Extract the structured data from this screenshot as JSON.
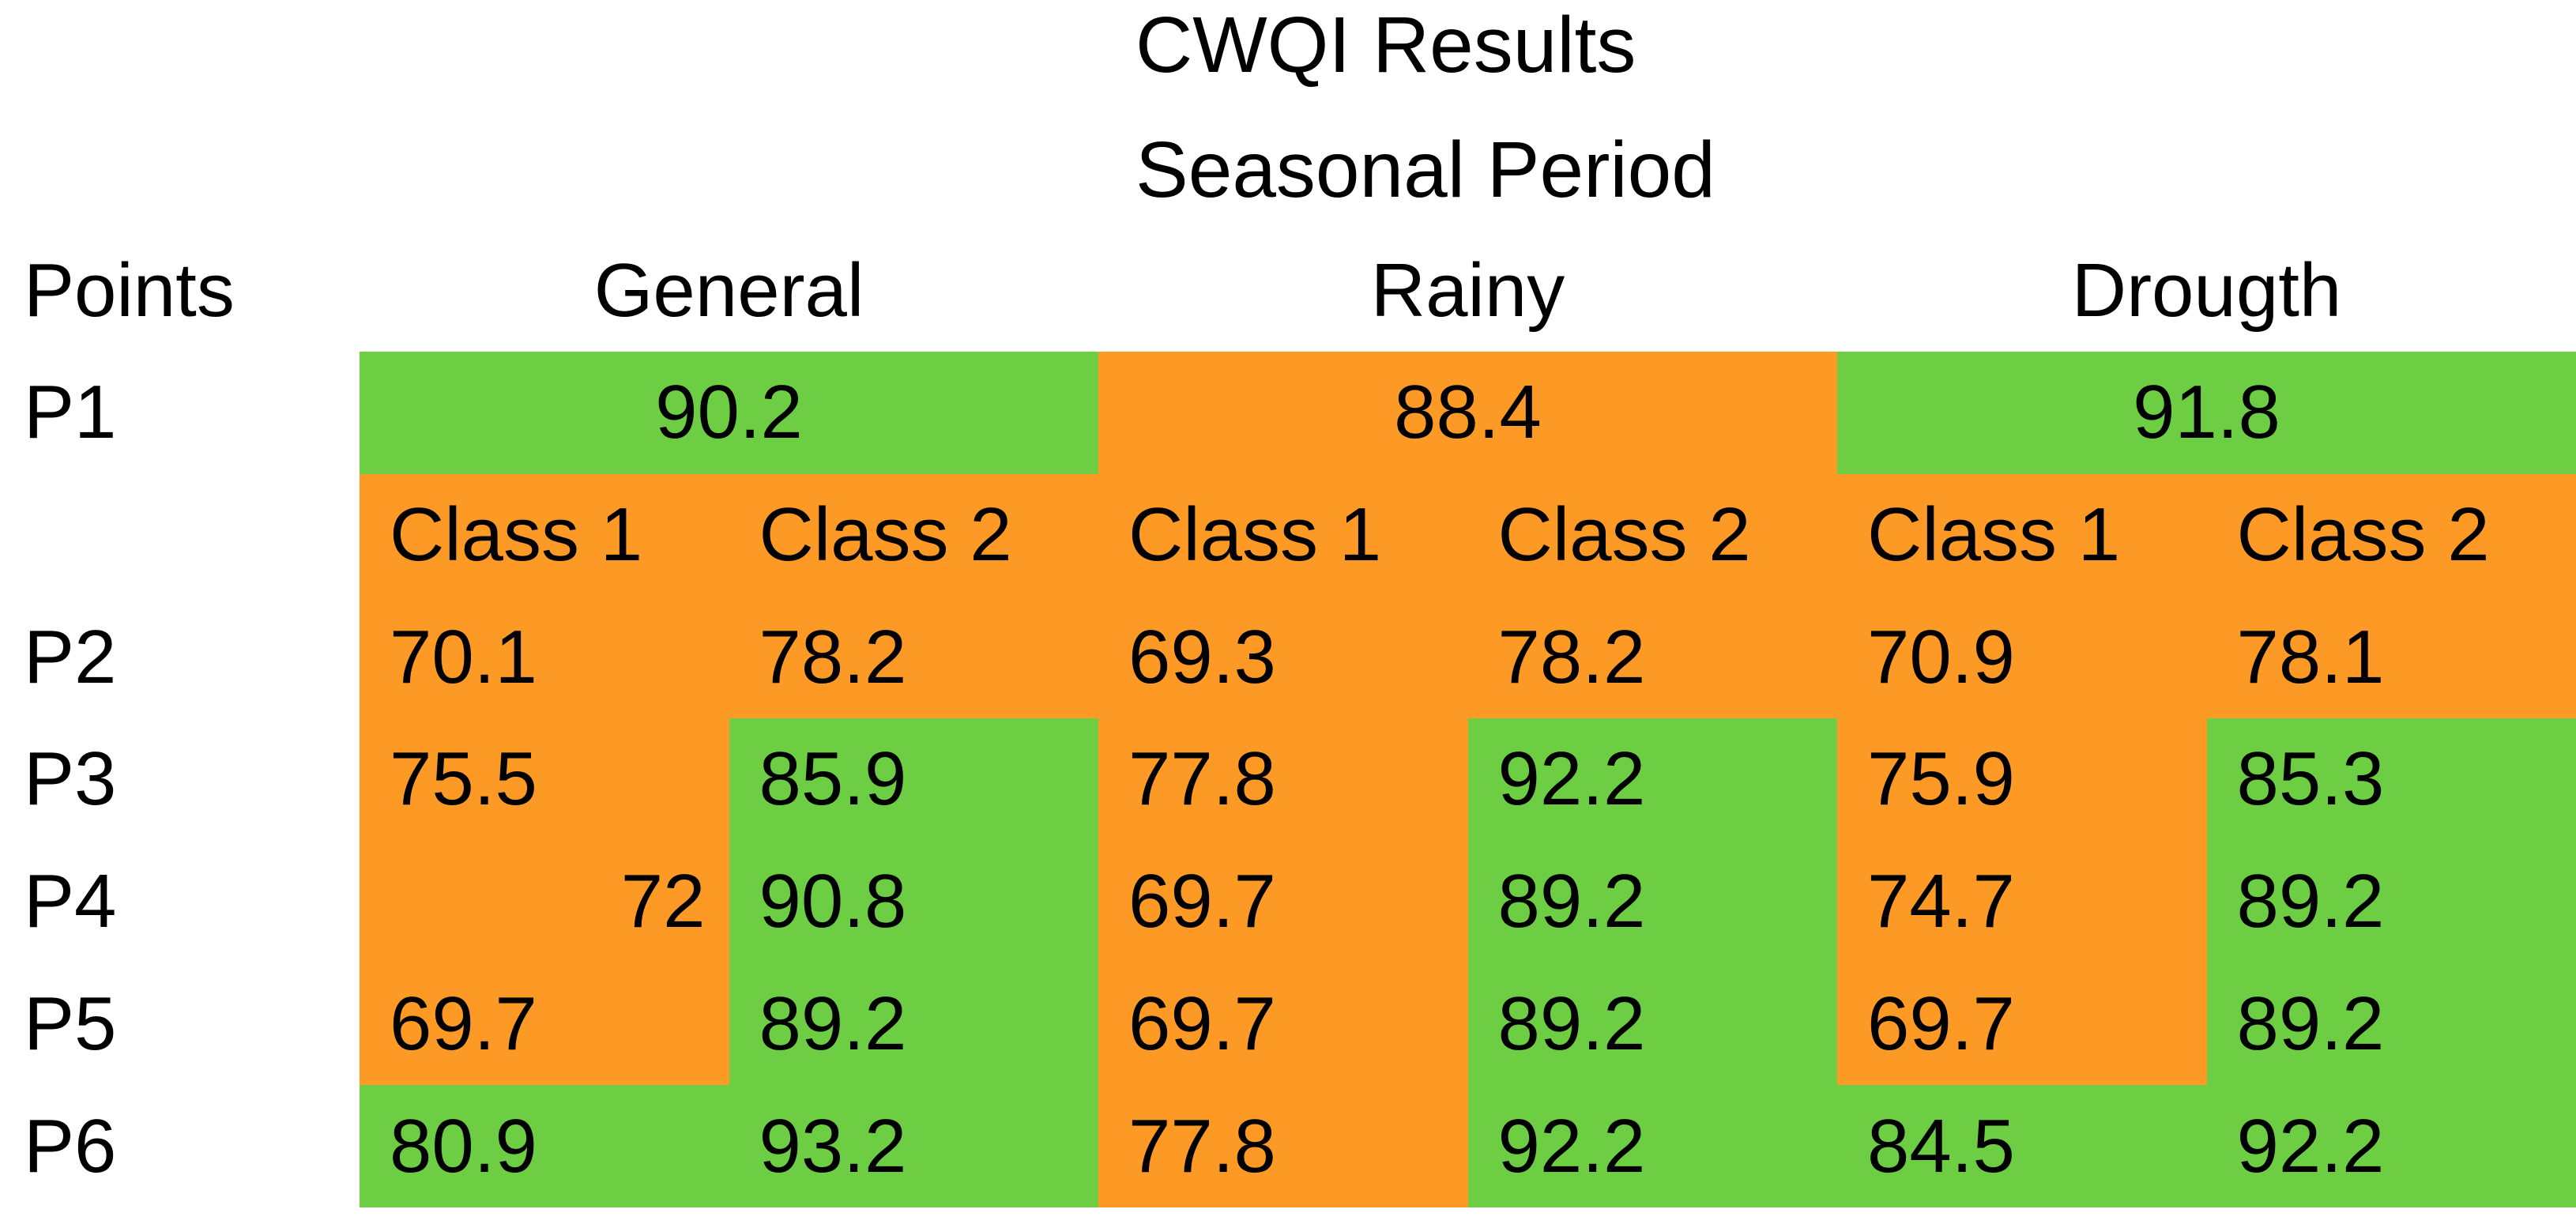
{
  "title": "CWQI Results",
  "subtitle": "Seasonal Period",
  "colors": {
    "green": "#6DCE44",
    "orange": "#FD9A26",
    "text": "#000000",
    "background": "#FFFFFF"
  },
  "chart_data": {
    "type": "table",
    "title": "CWQI Results",
    "subtitle": "Seasonal Period",
    "row_header": "Points",
    "column_groups": [
      {
        "label": "General",
        "sub_columns": [
          "Class 1",
          "Class 2"
        ]
      },
      {
        "label": "Rainy",
        "sub_columns": [
          "Class 1",
          "Class 2"
        ]
      },
      {
        "label": "Drougth",
        "sub_columns": [
          "Class 1",
          "Class 2"
        ]
      }
    ],
    "class_row": {
      "status": "orange",
      "labels": [
        "Class 1",
        "Class 2",
        "Class 1",
        "Class 2",
        "Class 1",
        "Class 2"
      ]
    },
    "merged_row": {
      "point": "P1",
      "cells": [
        {
          "season": "General",
          "value": "90.2",
          "status": "green"
        },
        {
          "season": "Rainy",
          "value": "88.4",
          "status": "orange"
        },
        {
          "season": "Drougth",
          "value": "91.8",
          "status": "green"
        }
      ]
    },
    "rows": [
      {
        "point": "P2",
        "cells": [
          {
            "value": "70.1",
            "status": "orange"
          },
          {
            "value": "78.2",
            "status": "orange"
          },
          {
            "value": "69.3",
            "status": "orange"
          },
          {
            "value": "78.2",
            "status": "orange"
          },
          {
            "value": "70.9",
            "status": "orange"
          },
          {
            "value": "78.1",
            "status": "orange"
          }
        ]
      },
      {
        "point": "P3",
        "cells": [
          {
            "value": "75.5",
            "status": "orange"
          },
          {
            "value": "85.9",
            "status": "green"
          },
          {
            "value": "77.8",
            "status": "orange"
          },
          {
            "value": "92.2",
            "status": "green"
          },
          {
            "value": "75.9",
            "status": "orange"
          },
          {
            "value": "85.3",
            "status": "green"
          }
        ]
      },
      {
        "point": "P4",
        "cells": [
          {
            "value": "72",
            "status": "orange",
            "align": "right"
          },
          {
            "value": "90.8",
            "status": "green"
          },
          {
            "value": "69.7",
            "status": "orange"
          },
          {
            "value": "89.2",
            "status": "green"
          },
          {
            "value": "74.7",
            "status": "orange"
          },
          {
            "value": "89.2",
            "status": "green"
          }
        ]
      },
      {
        "point": "P5",
        "cells": [
          {
            "value": "69.7",
            "status": "orange"
          },
          {
            "value": "89.2",
            "status": "green"
          },
          {
            "value": "69.7",
            "status": "orange"
          },
          {
            "value": "89.2",
            "status": "green"
          },
          {
            "value": "69.7",
            "status": "orange"
          },
          {
            "value": "89.2",
            "status": "green"
          }
        ]
      },
      {
        "point": "P6",
        "cells": [
          {
            "value": "80.9",
            "status": "green"
          },
          {
            "value": "93.2",
            "status": "green"
          },
          {
            "value": "77.8",
            "status": "orange"
          },
          {
            "value": "92.2",
            "status": "green"
          },
          {
            "value": "84.5",
            "status": "green"
          },
          {
            "value": "92.2",
            "status": "green"
          }
        ]
      }
    ]
  }
}
